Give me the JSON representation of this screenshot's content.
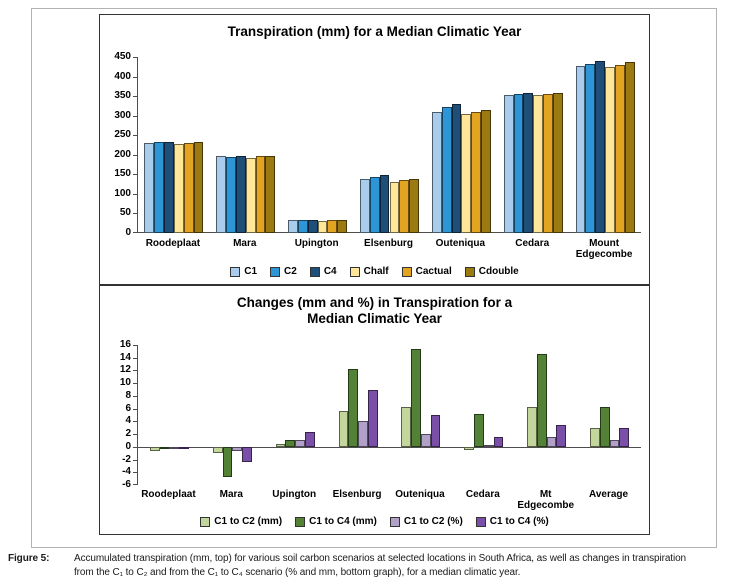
{
  "figure": {
    "caption_label": "Figure 5:",
    "caption_line1": "Accumulated transpiration (mm, top) for various soil carbon scenarios at selected locations in South Africa, as well as changes in transpiration",
    "caption_line2": "from the C₁ to C₂ and from the C₁ to C₄ scenario (% and mm, bottom graph), for a median climatic year."
  },
  "chart_data": [
    {
      "type": "bar",
      "title": "Transpiration (mm) for a Median Climatic Year",
      "categories": [
        "Roodeplaat",
        "Mara",
        "Upington",
        "Elsenburg",
        "Outeniqua",
        "Cedara",
        "Mount\nEdgecombe"
      ],
      "series": [
        {
          "name": "C1",
          "color": "#A9CBEC",
          "values": [
            230,
            196,
            32,
            138,
            310,
            354,
            427
          ]
        },
        {
          "name": "C2",
          "color": "#2E96D6",
          "values": [
            232,
            195,
            33,
            142,
            321,
            356,
            432
          ]
        },
        {
          "name": "C4",
          "color": "#1F4E79",
          "values": [
            233,
            197,
            33,
            148,
            330,
            359,
            440
          ]
        },
        {
          "name": "Chalf",
          "color": "#FFE699",
          "values": [
            228,
            193,
            31,
            130,
            305,
            352,
            425
          ]
        },
        {
          "name": "Cactual",
          "color": "#E3A422",
          "values": [
            231,
            196,
            32,
            135,
            309,
            356,
            430
          ]
        },
        {
          "name": "Cdouble",
          "color": "#9C7A12",
          "values": [
            233,
            198,
            33,
            138,
            315,
            357,
            436
          ]
        }
      ],
      "ylim": [
        0,
        450
      ],
      "ytick_step": 50,
      "grid": false,
      "legend_position": "bottom"
    },
    {
      "type": "bar",
      "title": "Changes (mm and %) in Transpiration for a\nMedian Climatic Year",
      "categories": [
        "Roodeplaat",
        "Mara",
        "Upington",
        "Elsenburg",
        "Outeniqua",
        "Cedara",
        "Mt\nEdgecombe",
        "Average"
      ],
      "series": [
        {
          "name": "C1 to C2 (mm)",
          "color": "#C3D69B",
          "values": [
            -0.6,
            -1.0,
            0.4,
            5.7,
            6.3,
            -0.5,
            6.2,
            2.9
          ]
        },
        {
          "name": "C1 to C4 (mm)",
          "color": "#538135",
          "values": [
            -0.4,
            -4.8,
            1.0,
            12.2,
            15.4,
            5.2,
            14.6,
            6.3
          ]
        },
        {
          "name": "C1 to C2 (%)",
          "color": "#B1A0C7",
          "values": [
            -0.3,
            -0.6,
            1.1,
            4.0,
            2.0,
            0.3,
            1.5,
            1.1
          ]
        },
        {
          "name": "C1 to C4 (%)",
          "color": "#7A4FA8",
          "values": [
            -0.2,
            -2.4,
            2.4,
            8.9,
            5.0,
            1.6,
            3.4,
            3.0
          ]
        }
      ],
      "ylim": [
        -6,
        16
      ],
      "ytick_step": 2,
      "grid": false,
      "legend_position": "bottom"
    }
  ]
}
